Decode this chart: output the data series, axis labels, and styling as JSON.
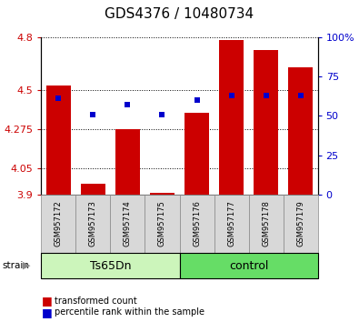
{
  "title": "GDS4376 / 10480734",
  "samples": [
    "GSM957172",
    "GSM957173",
    "GSM957174",
    "GSM957175",
    "GSM957176",
    "GSM957177",
    "GSM957178",
    "GSM957179"
  ],
  "red_values": [
    4.525,
    3.965,
    4.275,
    3.91,
    4.37,
    4.785,
    4.725,
    4.625
  ],
  "blue_pct": [
    61,
    51,
    57,
    51,
    60,
    63,
    63,
    63
  ],
  "y_min": 3.9,
  "y_max": 4.8,
  "y_ticks": [
    3.9,
    4.05,
    4.275,
    4.5,
    4.8
  ],
  "y2_ticks": [
    0,
    25,
    50,
    75,
    100
  ],
  "groups": [
    {
      "label": "Ts65Dn",
      "start": 0,
      "end": 4,
      "color": "#ccf5bb"
    },
    {
      "label": "control",
      "start": 4,
      "end": 8,
      "color": "#66dd66"
    }
  ],
  "bar_color": "#cc0000",
  "blue_color": "#0000cc",
  "bar_width": 0.7,
  "ylabel_left_color": "#cc0000",
  "ylabel_right_color": "#0000cc",
  "title_fontsize": 11,
  "tick_fontsize": 8,
  "label_fontsize": 7.5
}
